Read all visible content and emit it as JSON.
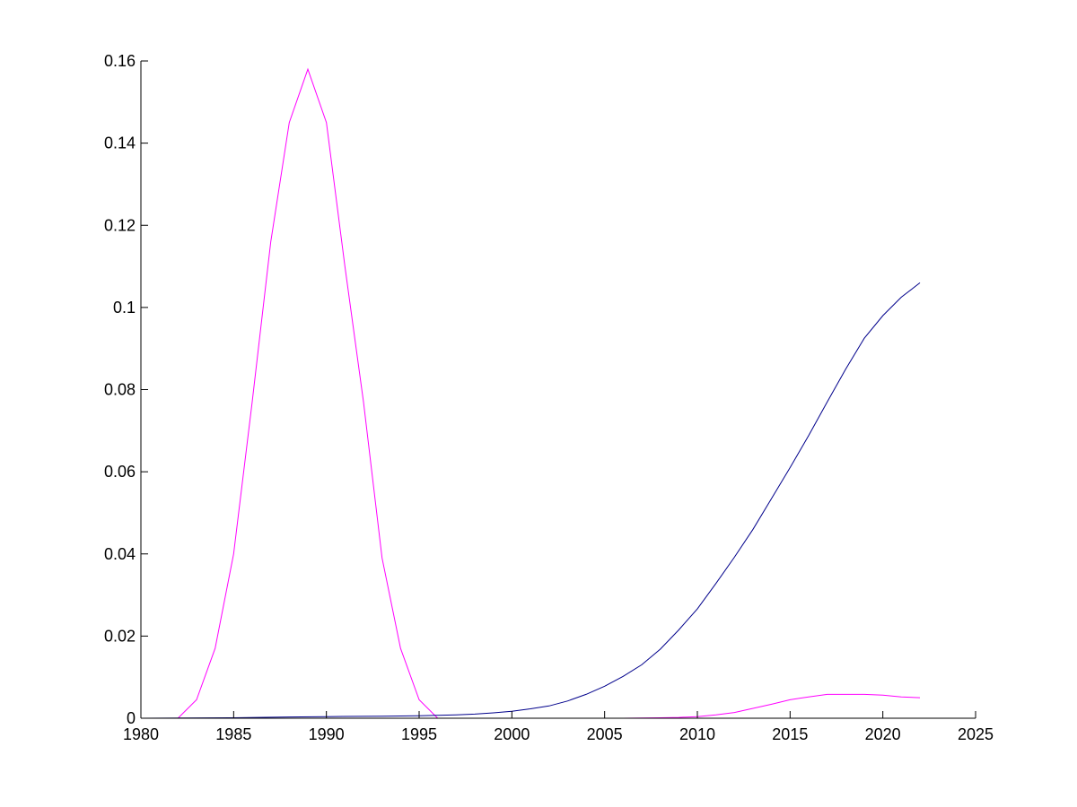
{
  "chart_data": {
    "type": "line",
    "title": "",
    "xlabel": "",
    "ylabel": "",
    "xlim": [
      1980,
      2025
    ],
    "ylim": [
      0,
      0.16
    ],
    "x_ticks": [
      "1980",
      "1985",
      "1990",
      "1995",
      "2000",
      "2005",
      "2010",
      "2015",
      "2020",
      "2025"
    ],
    "y_ticks": [
      "0",
      "0.02",
      "0.04",
      "0.06",
      "0.08",
      "0.1",
      "0.12",
      "0.14",
      "0.16"
    ],
    "grid": false,
    "legend": false,
    "series": [
      {
        "color": "#ff00ff",
        "x": [
          1980,
          1981,
          1982,
          1983,
          1984,
          1985,
          1986,
          1987,
          1988,
          1989,
          1990,
          1991,
          1992,
          1993,
          1994,
          1995,
          1996
        ],
        "y": [
          0,
          0,
          0,
          0.0045,
          0.017,
          0.04,
          0.077,
          0.116,
          0.145,
          0.158,
          0.145,
          0.11,
          0.077,
          0.039,
          0.017,
          0.0045,
          0
        ]
      },
      {
        "color": "#ff00ff",
        "x": [
          1996,
          1998,
          2000,
          2002,
          2004,
          2006,
          2007,
          2008,
          2009,
          2010,
          2011,
          2012,
          2013,
          2014,
          2015,
          2016,
          2017,
          2018,
          2019,
          2020,
          2021,
          2022
        ],
        "y": [
          0,
          0,
          0,
          0,
          0,
          0,
          5e-05,
          0.0001,
          0.0002,
          0.0004,
          0.0008,
          0.0014,
          0.0024,
          0.0034,
          0.0045,
          0.0052,
          0.0058,
          0.0058,
          0.0058,
          0.0056,
          0.0052,
          0.005
        ]
      },
      {
        "color": "#00008b",
        "x": [
          1980,
          1985,
          1988,
          1990,
          1993,
          1995,
          1997,
          1998,
          1999,
          2000,
          2001,
          2002,
          2003,
          2004,
          2005,
          2006,
          2007,
          2008,
          2009,
          2010,
          2011,
          2012,
          2013,
          2014,
          2015,
          2016,
          2017,
          2018,
          2019,
          2020,
          2021,
          2022
        ],
        "y": [
          0,
          0.0001,
          0.0003,
          0.0004,
          0.0005,
          0.0006,
          0.0008,
          0.001,
          0.0013,
          0.0017,
          0.0023,
          0.003,
          0.0042,
          0.0058,
          0.0078,
          0.0102,
          0.013,
          0.0168,
          0.0215,
          0.0266,
          0.0328,
          0.0392,
          0.046,
          0.0535,
          0.061,
          0.0688,
          0.077,
          0.085,
          0.0925,
          0.098,
          0.1025,
          0.106
        ]
      }
    ]
  }
}
